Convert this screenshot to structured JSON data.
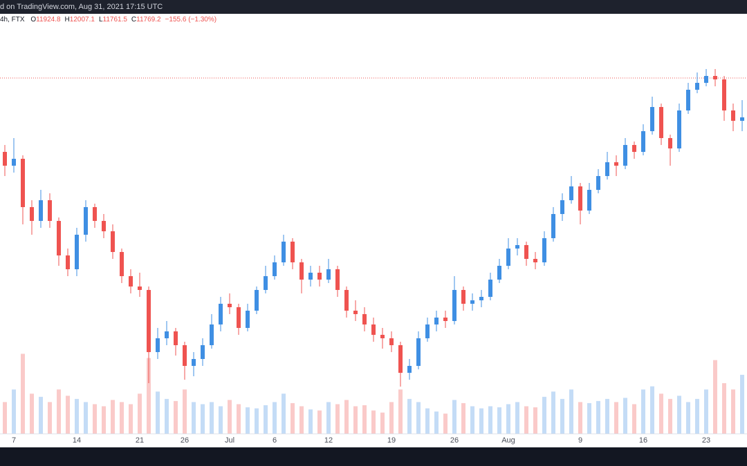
{
  "chart_data": {
    "type": "candlestick",
    "header": "d on TradingView.com, Aug 31, 2021 17:15 UTC",
    "symbol": "4h, FTX",
    "legend": [
      {
        "label": "O",
        "value": 11924.8
      },
      {
        "label": "H",
        "value": 12007.1
      },
      {
        "label": "L",
        "value": 11761.5
      },
      {
        "label": "C",
        "value": 11769.2
      }
    ],
    "change": "−155.6 (−1.30%)",
    "x": [
      "Jun 6",
      "Jun 7",
      "Jun 8",
      "Jun 9",
      "Jun 10",
      "Jun 11",
      "Jun 12",
      "Jun 13",
      "Jun 14",
      "Jun 15",
      "Jun 16",
      "Jun 17",
      "Jun 18",
      "Jun 19",
      "Jun 20",
      "Jun 21",
      "Jun 22",
      "Jun 23",
      "Jun 24",
      "Jun 25",
      "Jun 26",
      "Jun 27",
      "Jun 28",
      "Jun 29",
      "Jun 30",
      "Jul 1",
      "Jul 2",
      "Jul 3",
      "Jul 4",
      "Jul 5",
      "Jul 6",
      "Jul 7",
      "Jul 8",
      "Jul 9",
      "Jul 10",
      "Jul 11",
      "Jul 12",
      "Jul 13",
      "Jul 14",
      "Jul 15",
      "Jul 16",
      "Jul 17",
      "Jul 18",
      "Jul 19",
      "Jul 20",
      "Jul 21",
      "Jul 22",
      "Jul 23",
      "Jul 24",
      "Jul 25",
      "Jul 26",
      "Jul 27",
      "Jul 28",
      "Jul 29",
      "Jul 30",
      "Jul 31",
      "Aug 1",
      "Aug 2",
      "Aug 3",
      "Aug 4",
      "Aug 5",
      "Aug 6",
      "Aug 7",
      "Aug 8",
      "Aug 9",
      "Aug 10",
      "Aug 11",
      "Aug 12",
      "Aug 13",
      "Aug 14",
      "Aug 15",
      "Aug 16",
      "Aug 17",
      "Aug 18",
      "Aug 19",
      "Aug 20",
      "Aug 21",
      "Aug 22",
      "Aug 23",
      "Aug 24",
      "Aug 25",
      "Aug 26",
      "Aug 27"
    ],
    "open": [
      10699,
      10499,
      10599,
      9899,
      9699,
      9999,
      9699,
      9199,
      8999,
      9499,
      9899,
      9699,
      9549,
      9249,
      8899,
      8749,
      8699,
      7799,
      7999,
      8099,
      7899,
      7599,
      7699,
      7899,
      8199,
      8499,
      8449,
      8149,
      8399,
      8699,
      8899,
      9099,
      9399,
      9099,
      8849,
      8949,
      8849,
      8999,
      8699,
      8399,
      8349,
      8199,
      8049,
      7999,
      7899,
      7499,
      7599,
      7999,
      8199,
      8299,
      8249,
      8699,
      8499,
      8549,
      8599,
      8849,
      9049,
      9299,
      9349,
      9149,
      9099,
      9449,
      9799,
      9999,
      10199,
      9849,
      10149,
      10349,
      10549,
      10499,
      10799,
      10699,
      10999,
      11349,
      10899,
      10749,
      11299,
      11599,
      11699,
      11799,
      11749,
      11299,
      11149
    ],
    "high": [
      10799,
      10899,
      10649,
      9999,
      10149,
      10099,
      9749,
      9299,
      9599,
      9999,
      9949,
      9799,
      9649,
      9299,
      8999,
      8949,
      8749,
      8149,
      8249,
      8149,
      7949,
      7799,
      7999,
      8349,
      8599,
      8649,
      8499,
      8499,
      8749,
      9049,
      9199,
      9499,
      9449,
      9149,
      9049,
      9049,
      9149,
      9049,
      8749,
      8549,
      8449,
      8299,
      8149,
      8099,
      7949,
      7699,
      8099,
      8299,
      8399,
      8399,
      8899,
      8749,
      8649,
      8699,
      8949,
      9149,
      9449,
      9449,
      9399,
      9249,
      9549,
      9899,
      10099,
      10349,
      10249,
      10249,
      10449,
      10699,
      10649,
      10899,
      10849,
      11099,
      11499,
      11399,
      10949,
      11399,
      11699,
      11849,
      11899,
      11899,
      11799,
      11399,
      11449
    ],
    "low": [
      10349,
      10399,
      9649,
      9499,
      9599,
      9599,
      9049,
      8899,
      8899,
      9399,
      9599,
      9449,
      9149,
      8799,
      8649,
      8599,
      7349,
      7699,
      7899,
      7749,
      7399,
      7449,
      7599,
      7849,
      8099,
      8349,
      8049,
      8099,
      8349,
      8649,
      8849,
      9049,
      8999,
      8649,
      8749,
      8749,
      8799,
      8599,
      8299,
      8249,
      8099,
      7949,
      7849,
      7799,
      7299,
      7399,
      7549,
      7949,
      8099,
      8149,
      8199,
      8399,
      8399,
      8449,
      8549,
      8799,
      8999,
      9199,
      9049,
      8999,
      9049,
      9399,
      9699,
      9949,
      9649,
      9799,
      10099,
      10299,
      10349,
      10449,
      10599,
      10649,
      10949,
      10799,
      10499,
      10699,
      11249,
      11549,
      11649,
      11649,
      11149,
      10999,
      10999
    ],
    "close": [
      10499,
      10599,
      9899,
      9699,
      9999,
      9699,
      9199,
      8999,
      9499,
      9899,
      9699,
      9549,
      9249,
      8899,
      8749,
      8699,
      7799,
      7999,
      8099,
      7899,
      7599,
      7699,
      7899,
      8199,
      8499,
      8449,
      8149,
      8399,
      8699,
      8899,
      9099,
      9399,
      9099,
      8849,
      8949,
      8849,
      8999,
      8699,
      8399,
      8349,
      8199,
      8049,
      7999,
      7899,
      7499,
      7599,
      7999,
      8199,
      8299,
      8249,
      8699,
      8499,
      8549,
      8599,
      8849,
      9049,
      9299,
      9349,
      9149,
      9099,
      9449,
      9799,
      9999,
      10199,
      9849,
      10149,
      10349,
      10549,
      10499,
      10799,
      10699,
      10999,
      11349,
      10899,
      10749,
      11299,
      11599,
      11699,
      11799,
      11749,
      11299,
      11149,
      11199
    ],
    "volume": [
      300,
      420,
      760,
      380,
      350,
      300,
      420,
      360,
      330,
      300,
      280,
      260,
      320,
      300,
      280,
      380,
      720,
      400,
      330,
      310,
      420,
      300,
      280,
      300,
      260,
      320,
      280,
      250,
      240,
      270,
      300,
      380,
      290,
      260,
      230,
      220,
      300,
      280,
      320,
      260,
      270,
      220,
      200,
      300,
      420,
      330,
      300,
      240,
      210,
      190,
      320,
      290,
      260,
      240,
      260,
      250,
      280,
      300,
      260,
      250,
      350,
      400,
      330,
      420,
      300,
      290,
      310,
      330,
      300,
      340,
      280,
      420,
      450,
      380,
      330,
      360,
      300,
      330,
      420,
      700,
      480,
      420,
      560
    ],
    "ylim": [
      6619,
      12699
    ],
    "volume_ylim": [
      0,
      4000
    ],
    "xticks": [
      {
        "value": "Jun 7",
        "label": "7"
      },
      {
        "value": "Jun 14",
        "label": "14"
      },
      {
        "value": "Jun 21",
        "label": "21"
      },
      {
        "value": "Jun 26",
        "label": "26"
      },
      {
        "value": "Jul 1",
        "label": "Jul"
      },
      {
        "value": "Jul 6",
        "label": "6"
      },
      {
        "value": "Jul 12",
        "label": "12"
      },
      {
        "value": "Jul 19",
        "label": "19"
      },
      {
        "value": "Jul 26",
        "label": "26"
      },
      {
        "value": "Aug 1",
        "label": "Aug"
      },
      {
        "value": "Aug 9",
        "label": "9"
      },
      {
        "value": "Aug 16",
        "label": "16"
      },
      {
        "value": "Aug 23",
        "label": "23"
      }
    ],
    "up_color": "#3f8fe3",
    "down_color": "#ef5350",
    "price_line": true
  }
}
